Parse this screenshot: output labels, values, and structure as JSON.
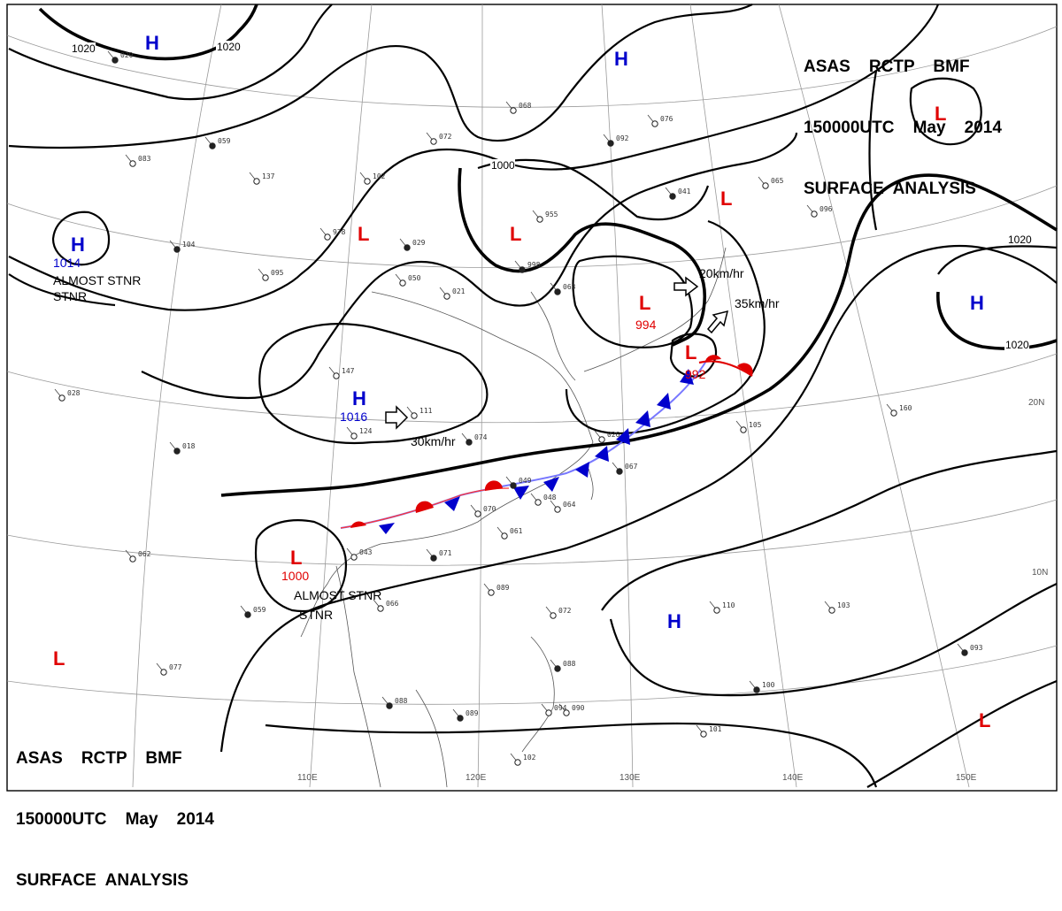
{
  "header": {
    "line1": "ASAS    RCTP    BMF",
    "line2": "150000UTC    May    2014",
    "line3": "SURFACE  ANALYSIS"
  },
  "grid_labels": {
    "lon": [
      "110E",
      "120E",
      "130E",
      "140E",
      "150E"
    ],
    "lat": [
      "20N",
      "10N"
    ]
  },
  "isobar_labels": [
    "1020",
    "1020",
    "1000",
    "1020",
    "1020"
  ],
  "pressure_centers": [
    {
      "type": "H",
      "value": "1014",
      "note": "ALMOST STNR"
    },
    {
      "type": "H",
      "value": "1016",
      "note": ""
    },
    {
      "type": "H",
      "value": "",
      "note": ""
    },
    {
      "type": "H",
      "value": "",
      "note": ""
    },
    {
      "type": "H",
      "value": "",
      "note": ""
    },
    {
      "type": "H",
      "value": "",
      "note": ""
    },
    {
      "type": "L",
      "value": "",
      "note": ""
    },
    {
      "type": "L",
      "value": "",
      "note": ""
    },
    {
      "type": "L",
      "value": "994",
      "note": ""
    },
    {
      "type": "L",
      "value": "992",
      "note": ""
    },
    {
      "type": "L",
      "value": "1000",
      "note": "ALMOST STNR"
    },
    {
      "type": "L",
      "value": "",
      "note": ""
    },
    {
      "type": "L",
      "value": "",
      "note": ""
    },
    {
      "type": "L",
      "value": "",
      "note": ""
    }
  ],
  "movements": [
    "20km/hr",
    "35km/hr",
    "30km/hr"
  ],
  "stations": [
    "020",
    "083",
    "137",
    "059",
    "102",
    "978",
    "029",
    "072",
    "955",
    "998",
    "068",
    "076",
    "041",
    "065",
    "096",
    "104",
    "050",
    "021",
    "063",
    "147",
    "111",
    "074",
    "124",
    "026",
    "049",
    "048",
    "064",
    "067",
    "061",
    "070",
    "071",
    "043",
    "066",
    "059",
    "089",
    "072",
    "088",
    "094",
    "090",
    "089",
    "102",
    "101",
    "100",
    "103",
    "110",
    "093",
    "105",
    "160",
    "018",
    "062",
    "077",
    "088",
    "028",
    "095",
    "092"
  ],
  "colors": {
    "high": "#0000cc",
    "low": "#e00000",
    "warm_front": "#e00000",
    "cold_front": "#0000cc"
  }
}
